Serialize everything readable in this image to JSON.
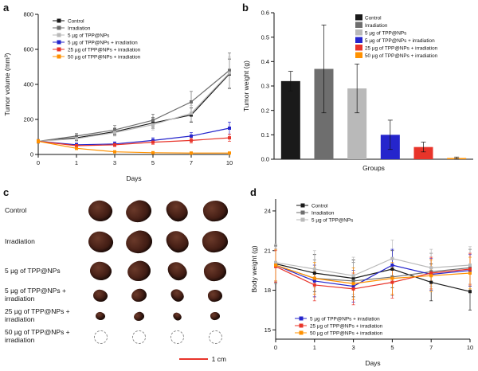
{
  "figure": {
    "panel_a_label": "a",
    "panel_b_label": "b",
    "panel_c_label": "c",
    "panel_d_label": "d"
  },
  "colors": {
    "control": "#1a1a1a",
    "irradiation": "#6e6e6e",
    "nps5": "#b9b9b9",
    "nps5_irradiation": "#2525cc",
    "nps25_irradiation": "#e8342a",
    "nps50_irradiation": "#ff9100",
    "scale_bar": "#e8342a"
  },
  "chart_data": [
    {
      "id": "tumor-volume",
      "type": "line",
      "title": "",
      "xlabel": "Days",
      "ylabel": "Tumor volume (mm³)",
      "x": [
        0,
        1,
        3,
        5,
        7,
        10
      ],
      "ylim": [
        0,
        800
      ],
      "yticks": [
        0,
        200,
        400,
        600,
        800
      ],
      "legend_position": "top-left",
      "series": [
        {
          "name": "Control",
          "color": "#1a1a1a",
          "values": [
            75,
            95,
            130,
            180,
            225,
            460
          ],
          "errors": [
            10,
            15,
            20,
            30,
            40,
            85
          ]
        },
        {
          "name": "Irradiation",
          "color": "#6e6e6e",
          "values": [
            75,
            105,
            140,
            195,
            300,
            480
          ],
          "errors": [
            10,
            15,
            25,
            35,
            60,
            100
          ]
        },
        {
          "name": "5 µg of TPP@NPs",
          "color": "#b9b9b9",
          "values": [
            75,
            90,
            125,
            170,
            235,
            465
          ],
          "errors": [
            10,
            15,
            20,
            30,
            45,
            90
          ]
        },
        {
          "name": "5 µg of TPP@NPs + irradiation",
          "color": "#2525cc",
          "values": [
            75,
            55,
            60,
            80,
            105,
            150
          ],
          "errors": [
            10,
            10,
            12,
            15,
            20,
            35
          ]
        },
        {
          "name": "25 µg of TPP@NPs + irradiation",
          "color": "#e8342a",
          "values": [
            75,
            50,
            55,
            70,
            80,
            95
          ],
          "errors": [
            10,
            10,
            10,
            12,
            15,
            20
          ]
        },
        {
          "name": "50 µg of TPP@NPs + irradiation",
          "color": "#ff9100",
          "values": [
            75,
            35,
            15,
            10,
            8,
            8
          ],
          "errors": [
            10,
            8,
            5,
            4,
            3,
            3
          ]
        }
      ]
    },
    {
      "id": "tumor-weight",
      "type": "bar",
      "title": "",
      "xlabel": "Groups",
      "ylabel": "Tumor weight (g)",
      "ylim": [
        0,
        0.6
      ],
      "yticks": [
        0.0,
        0.1,
        0.2,
        0.3,
        0.4,
        0.5,
        0.6
      ],
      "legend_position": "top-right",
      "categories": [
        "Control",
        "Irradiation",
        "5 µg of TPP@NPs",
        "5 µg of TPP@NPs + irradiation",
        "25 µg of TPP@NPs + irradiation",
        "50 µg of TPP@NPs + irradiation"
      ],
      "values": [
        0.32,
        0.37,
        0.29,
        0.1,
        0.05,
        0.005
      ],
      "errors": [
        0.04,
        0.18,
        0.1,
        0.06,
        0.02,
        0.004
      ],
      "bar_colors": [
        "#1a1a1a",
        "#6e6e6e",
        "#b9b9b9",
        "#2525cc",
        "#e8342a",
        "#ff9100"
      ]
    },
    {
      "id": "body-weight",
      "type": "line",
      "title": "",
      "xlabel": "Days",
      "ylabel": "Body weight (g)",
      "x": [
        0,
        1,
        3,
        5,
        7,
        10
      ],
      "ylim": [
        14.3,
        24.9
      ],
      "yticks": [
        15,
        18,
        21,
        24
      ],
      "legend_top": [
        "Control",
        "Irradiation",
        "5 µg of TPP@NPs"
      ],
      "legend_bottom": [
        "5 µg of TPP@NPs + irradiation",
        "25 µg of TPP@NPs + irradiation",
        "50 µg of TPP@NPs + irradiation"
      ],
      "series": [
        {
          "name": "Control",
          "color": "#1a1a1a",
          "values": [
            20.0,
            19.3,
            18.9,
            19.6,
            18.6,
            17.9
          ],
          "errors": [
            1.4,
            1.4,
            1.4,
            1.4,
            1.4,
            1.4
          ]
        },
        {
          "name": "Irradiation",
          "color": "#6e6e6e",
          "values": [
            19.9,
            18.9,
            18.7,
            19.0,
            19.4,
            19.7
          ],
          "errors": [
            1.4,
            1.4,
            1.4,
            1.4,
            1.4,
            1.4
          ]
        },
        {
          "name": "5 µg of TPP@NPs",
          "color": "#b9b9b9",
          "values": [
            20.1,
            19.6,
            19.1,
            20.4,
            19.7,
            19.9
          ],
          "errors": [
            1.4,
            1.4,
            1.4,
            1.4,
            1.4,
            1.4
          ]
        },
        {
          "name": "5 µg of TPP@NPs + irradiation",
          "color": "#2525cc",
          "values": [
            19.9,
            18.7,
            18.3,
            19.9,
            19.2,
            19.5
          ],
          "errors": [
            1.2,
            1.2,
            1.2,
            1.2,
            1.2,
            1.2
          ]
        },
        {
          "name": "25 µg of TPP@NPs + irradiation",
          "color": "#e8342a",
          "values": [
            19.8,
            18.4,
            18.1,
            18.6,
            19.3,
            19.6
          ],
          "errors": [
            1.2,
            1.2,
            1.2,
            1.2,
            1.2,
            1.2
          ]
        },
        {
          "name": "50 µg of TPP@NPs + irradiation",
          "color": "#ff9100",
          "values": [
            19.9,
            18.9,
            18.5,
            18.9,
            19.1,
            19.3
          ],
          "errors": [
            1.2,
            1.2,
            1.2,
            1.2,
            1.2,
            1.2
          ]
        }
      ]
    }
  ],
  "panel_c": {
    "columns": 4,
    "rows": [
      {
        "label": "Control",
        "size": 30,
        "dashed": false
      },
      {
        "label": "Irradiation",
        "size": 31,
        "dashed": false
      },
      {
        "label": "5 µg of TPP@NPs",
        "size": 27,
        "dashed": false
      },
      {
        "label": "5 µg of TPP@NPs + irradiation",
        "size": 18,
        "dashed": false
      },
      {
        "label": "25 µg of TPP@NPs + irradiation",
        "size": 12,
        "dashed": false
      },
      {
        "label": "50 µg of TPP@NPs + irradiation",
        "size": 15,
        "dashed": true
      }
    ],
    "scale_bar_label": "1 cm"
  }
}
